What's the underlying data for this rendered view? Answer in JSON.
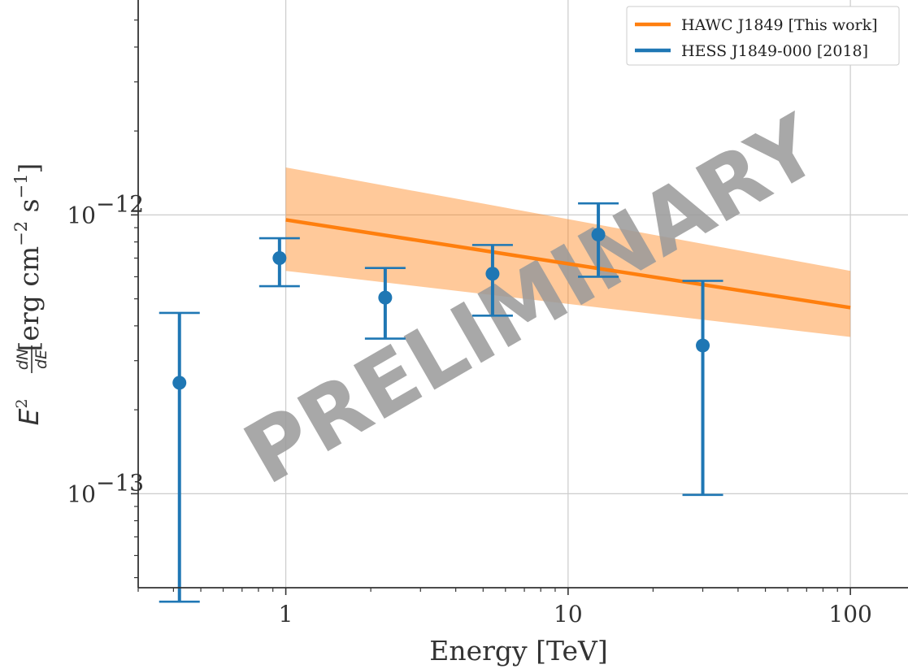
{
  "chart_data": {
    "type": "scatter",
    "title": "",
    "xlabel": "Energy [TeV]",
    "ylabel": "E² dN/dE [erg cm⁻² s⁻¹]",
    "ylabel_parts": {
      "E": "E",
      "sq": "2",
      "dN": "dN",
      "dE": "dE",
      "erg": "[erg cm",
      "m2": "−2",
      "s": " s",
      "m1": "−1",
      "close": "]"
    },
    "x_scale": "log",
    "y_scale": "log",
    "xlim": [
      0.3,
      160
    ],
    "ylim": [
      4.6e-14,
      5.9e-12
    ],
    "grid": true,
    "legend_position": "top-right",
    "x_ticks": [
      {
        "value": 1,
        "label": "1"
      },
      {
        "value": 10,
        "label": "10"
      },
      {
        "value": 100,
        "label": "100"
      }
    ],
    "y_ticks": [
      {
        "value": 1e-13,
        "label": "10",
        "exp": "−13"
      },
      {
        "value": 1e-12,
        "label": "10",
        "exp": "−12"
      }
    ],
    "watermark": "PRELIMINARY",
    "series": [
      {
        "name": "HAWC J1849 [This work]",
        "color": "#ff7f0e",
        "kind": "line_with_band",
        "x": [
          1,
          100
        ],
        "y": [
          9.6e-13,
          4.65e-13
        ],
        "band_upper": [
          1.48e-12,
          6.3e-13
        ],
        "band_lower": [
          6.3e-13,
          3.65e-13
        ]
      },
      {
        "name": "HESS J1849-000 [2018]",
        "color": "#1f77b4",
        "kind": "errorbar",
        "points": [
          {
            "x": 0.42,
            "y": 2.5e-13,
            "y_low": 4.1e-14,
            "y_high": 4.45e-13
          },
          {
            "x": 0.95,
            "y": 7e-13,
            "y_low": 5.55e-13,
            "y_high": 8.25e-13
          },
          {
            "x": 2.25,
            "y": 5.05e-13,
            "y_low": 3.6e-13,
            "y_high": 6.45e-13
          },
          {
            "x": 5.4,
            "y": 6.15e-13,
            "y_low": 4.35e-13,
            "y_high": 7.8e-13
          },
          {
            "x": 12.8,
            "y": 8.5e-13,
            "y_low": 6e-13,
            "y_high": 1.1e-12
          },
          {
            "x": 30.0,
            "y": 3.4e-13,
            "y_low": 9.9e-14,
            "y_high": 5.8e-13
          }
        ]
      }
    ]
  }
}
